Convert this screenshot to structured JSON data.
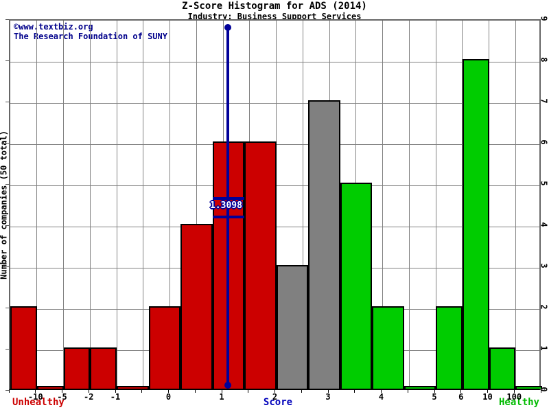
{
  "chart_data": {
    "type": "bar",
    "title": "Z-Score Histogram for ADS (2014)",
    "subtitle": "Industry: Business Support Services",
    "watermark_line1": "©www.textbiz.org",
    "watermark_line2": "The Research Foundation of SUNY",
    "ylabel": "Number of companies (50 total)",
    "xlabel": "Score",
    "footer_left": "Unhealthy",
    "footer_right": "Healthy",
    "ylim": [
      0,
      9
    ],
    "grid": true,
    "legend": "none",
    "y_ticks": [
      "0",
      "1",
      "2",
      "3",
      "4",
      "5",
      "6",
      "7",
      "8",
      "9"
    ],
    "x_ticks": [
      {
        "k": 1,
        "label": "-10"
      },
      {
        "k": 2,
        "label": "-5"
      },
      {
        "k": 3,
        "label": "-2"
      },
      {
        "k": 4,
        "label": "-1"
      },
      {
        "k": 6,
        "label": "0"
      },
      {
        "k": 8,
        "label": "1"
      },
      {
        "k": 10,
        "label": "2"
      },
      {
        "k": 12,
        "label": "3"
      },
      {
        "k": 14,
        "label": "4"
      },
      {
        "k": 16,
        "label": "5"
      },
      {
        "k": 17,
        "label": "6"
      },
      {
        "k": 18,
        "label": "10"
      },
      {
        "k": 19,
        "label": "100"
      }
    ],
    "colors": {
      "red": "#cc0000",
      "gray": "#808080",
      "green": "#00cc00",
      "marker": "#000099",
      "gridline": "#808080",
      "unhealthy_text": "#cc0000",
      "healthy_text": "#00bb00",
      "watermark_text": "#00008B"
    },
    "bins": [
      {
        "from": "left-edge",
        "to": "-10",
        "count": 2,
        "color": "red",
        "k0": 0,
        "k1": 1
      },
      {
        "from": "-10",
        "to": "-5",
        "count": 0,
        "color": "red",
        "k0": 1,
        "k1": 2
      },
      {
        "from": "-5",
        "to": "-2",
        "count": 1,
        "color": "red",
        "k0": 2,
        "k1": 3
      },
      {
        "from": "-2",
        "to": "-1",
        "count": 1,
        "color": "red",
        "k0": 3,
        "k1": 4
      },
      {
        "from": "-1",
        "to": "-0.4",
        "count": 0,
        "color": "red",
        "k0": 4,
        "k1": 5.2
      },
      {
        "from": "-0.4",
        "to": "0.2",
        "count": 2,
        "color": "red",
        "k0": 5.2,
        "k1": 6.4
      },
      {
        "from": "0.2",
        "to": "0.8",
        "count": 4,
        "color": "red",
        "k0": 6.4,
        "k1": 7.6
      },
      {
        "from": "0.8",
        "to": "1.4",
        "count": 6,
        "color": "red",
        "k0": 7.6,
        "k1": 8.8
      },
      {
        "from": "1.4",
        "to": "2",
        "count": 6,
        "color": "red",
        "k0": 8.8,
        "k1": 10
      },
      {
        "from": "2",
        "to": "2.6",
        "count": 3,
        "color": "gray",
        "k0": 10,
        "k1": 11.2
      },
      {
        "from": "2.6",
        "to": "3.2",
        "count": 7,
        "color": "gray",
        "k0": 11.2,
        "k1": 12.4
      },
      {
        "from": "3.2",
        "to": "3.8",
        "count": 5,
        "color": "green",
        "k0": 12.4,
        "k1": 13.6
      },
      {
        "from": "3.8",
        "to": "4.4",
        "count": 2,
        "color": "green",
        "k0": 13.6,
        "k1": 14.8
      },
      {
        "from": "4.4",
        "to": "5",
        "count": 0,
        "color": "green",
        "k0": 14.8,
        "k1": 16
      },
      {
        "from": "5",
        "to": "6",
        "count": 2,
        "color": "green",
        "k0": 16,
        "k1": 17
      },
      {
        "from": "6",
        "to": "10",
        "count": 8,
        "color": "green",
        "k0": 17,
        "k1": 18
      },
      {
        "from": "10",
        "to": "100",
        "count": 1,
        "color": "green",
        "k0": 18,
        "k1": 19
      },
      {
        "from": "100",
        "to": "right-edge",
        "count": 0,
        "color": "green",
        "k0": 19,
        "k1": 20
      }
    ],
    "marker": {
      "label": "1.3098",
      "value": 1.3098,
      "k": 8.18,
      "cross_k0": 7.6,
      "cross_k1": 8.8,
      "cross_n_top": 4.72,
      "cross_n_bot": 4.27,
      "line_n_top": 8.83,
      "line_n_bot": 0.15
    }
  }
}
